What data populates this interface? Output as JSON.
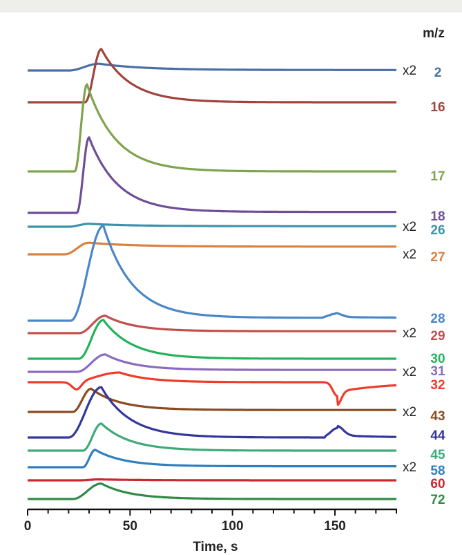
{
  "chart_data": {
    "type": "line",
    "title": "",
    "xlabel": "Time, s",
    "ylabel": "",
    "xlim": [
      0,
      180
    ],
    "xticks": [
      0,
      50,
      100,
      150
    ],
    "legend_header": "m/z",
    "grid": false,
    "series": [
      {
        "name": "2",
        "color": "#4a6fa5",
        "multiplier": "x2",
        "shape": {
          "baseline": 0.0,
          "onset": 20,
          "peak_time": 35,
          "peak": 7,
          "tail": 0.5,
          "step": 0,
          "wide": true
        }
      },
      {
        "name": "16",
        "color": "#a0443c",
        "multiplier": "",
        "shape": {
          "baseline": 0.0,
          "onset": 28,
          "peak_time": 36,
          "peak": 55,
          "tail": 0,
          "step": 0
        }
      },
      {
        "name": "17",
        "color": "#7fa34e",
        "multiplier": "",
        "shape": {
          "baseline": 0.0,
          "onset": 23,
          "peak_time": 29,
          "peak": 90,
          "tail": 0,
          "step": 0
        }
      },
      {
        "name": "18",
        "color": "#6e4e96",
        "multiplier": "",
        "shape": {
          "baseline": 0.0,
          "onset": 24,
          "peak_time": 30,
          "peak": 78,
          "tail": 1,
          "step": 0
        }
      },
      {
        "name": "26",
        "color": "#3b93a8",
        "multiplier": "x2",
        "shape": {
          "baseline": 0.0,
          "onset": 20,
          "peak_time": 30,
          "peak": 3,
          "tail": 0.5,
          "step": 0,
          "wide": true
        }
      },
      {
        "name": "27",
        "color": "#d9813f",
        "multiplier": "x2",
        "shape": {
          "baseline": 0.0,
          "onset": 18,
          "peak_time": 30,
          "peak": 12,
          "tail": 8,
          "step": 0,
          "wide": true
        }
      },
      {
        "name": "28",
        "color": "#4a86c8",
        "multiplier": "",
        "shape": {
          "baseline": 0.0,
          "onset": 21,
          "peak_time": 37,
          "peak": 98,
          "tail": 3,
          "step": 150,
          "step_height": 5
        }
      },
      {
        "name": "29",
        "color": "#c0504d",
        "multiplier": "x2",
        "shape": {
          "baseline": 0.0,
          "onset": 25,
          "peak_time": 38,
          "peak": 18,
          "tail": 2,
          "step": 0
        }
      },
      {
        "name": "30",
        "color": "#23b25a",
        "multiplier": "",
        "shape": {
          "baseline": 0.0,
          "onset": 25,
          "peak_time": 37,
          "peak": 40,
          "tail": 0,
          "step": 0
        }
      },
      {
        "name": "31",
        "color": "#8a6bbf",
        "multiplier": "x2",
        "shape": {
          "baseline": 0.0,
          "onset": 24,
          "peak_time": 38,
          "peak": 18,
          "tail": 2,
          "step": 0
        }
      },
      {
        "name": "32",
        "color": "#ee3b2b",
        "multiplier": "",
        "shape": {
          "baseline": 0.0,
          "onset": 20,
          "peak_time": 45,
          "peak": 10,
          "tail": 0,
          "dip1": 24,
          "dip2": 151
        }
      },
      {
        "name": "43",
        "color": "#8b4a20",
        "multiplier": "x2",
        "shape": {
          "baseline": 0.0,
          "onset": 22,
          "peak_time": 31,
          "peak": 24,
          "tail": 2,
          "step": 0
        }
      },
      {
        "name": "44",
        "color": "#34379a",
        "multiplier": "",
        "shape": {
          "baseline": 0.0,
          "onset": 20,
          "peak_time": 36,
          "peak": 52,
          "tail": 0,
          "step": 151,
          "step_height": 12
        }
      },
      {
        "name": "45",
        "color": "#3eaa78",
        "multiplier": "",
        "shape": {
          "baseline": 0.0,
          "onset": 27,
          "peak_time": 36,
          "peak": 28,
          "tail": 0,
          "step": 0
        }
      },
      {
        "name": "58",
        "color": "#2d7fc1",
        "multiplier": "x2",
        "shape": {
          "baseline": 0.0,
          "onset": 27,
          "peak_time": 33,
          "peak": 18,
          "tail": 1,
          "step": 0
        }
      },
      {
        "name": "60",
        "color": "#c8282e",
        "multiplier": "",
        "shape": {
          "baseline": 0.0,
          "onset": 25,
          "peak_time": 35,
          "peak": 1,
          "tail": 0,
          "step": 0,
          "wide": true
        }
      },
      {
        "name": "72",
        "color": "#2e8b46",
        "multiplier": "",
        "shape": {
          "baseline": 0.0,
          "onset": 22,
          "peak_time": 36,
          "peak": 16,
          "tail": 0,
          "step": 0
        }
      }
    ]
  }
}
